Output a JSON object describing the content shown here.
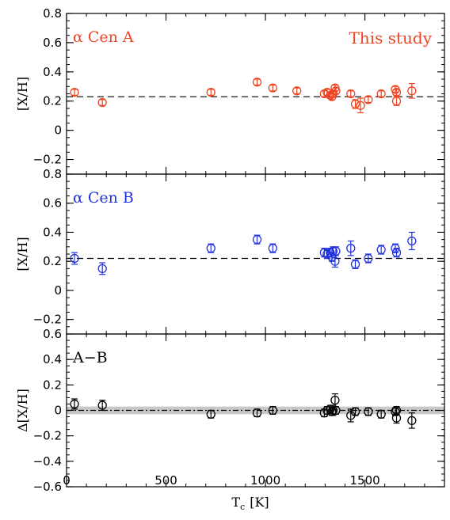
{
  "chart_data": {
    "type": "scatter",
    "xlabel": "T_c [K]",
    "xlabel_main": "T",
    "xlabel_sub": "c",
    "xlabel_unit": "[K]",
    "xlim": [
      0,
      1900
    ],
    "xticks": [
      "0",
      "500",
      "1000",
      "1500"
    ],
    "xtick_values": [
      0,
      500,
      1000,
      1500
    ],
    "panels": [
      {
        "id": "A",
        "label": "α Cen A",
        "note": "This study",
        "color": "#ee4422",
        "ylabel": "[X/H]",
        "ylim": [
          -0.3,
          0.8
        ],
        "yticks": [
          "−0.2",
          "0",
          "0.2",
          "0.4",
          "0.6",
          "0.8"
        ],
        "ytick_values": [
          -0.2,
          0,
          0.2,
          0.4,
          0.6,
          0.8
        ],
        "reference_line": 0.23,
        "points": [
          {
            "x": 40,
            "y": 0.26,
            "err": 0.02
          },
          {
            "x": 180,
            "y": 0.19,
            "err": 0.02
          },
          {
            "x": 726,
            "y": 0.26,
            "err": 0.02
          },
          {
            "x": 958,
            "y": 0.33,
            "err": 0.02
          },
          {
            "x": 1037,
            "y": 0.29,
            "err": 0.02
          },
          {
            "x": 1158,
            "y": 0.27,
            "err": 0.02
          },
          {
            "x": 1296,
            "y": 0.25,
            "err": 0.02
          },
          {
            "x": 1310,
            "y": 0.26,
            "err": 0.02
          },
          {
            "x": 1326,
            "y": 0.24,
            "err": 0.02
          },
          {
            "x": 1334,
            "y": 0.23,
            "err": 0.02
          },
          {
            "x": 1340,
            "y": 0.25,
            "err": 0.02
          },
          {
            "x": 1350,
            "y": 0.29,
            "err": 0.02
          },
          {
            "x": 1354,
            "y": 0.27,
            "err": 0.02
          },
          {
            "x": 1429,
            "y": 0.25,
            "err": 0.02
          },
          {
            "x": 1452,
            "y": 0.18,
            "err": 0.03
          },
          {
            "x": 1478,
            "y": 0.17,
            "err": 0.05
          },
          {
            "x": 1517,
            "y": 0.21,
            "err": 0.02
          },
          {
            "x": 1582,
            "y": 0.25,
            "err": 0.02
          },
          {
            "x": 1653,
            "y": 0.28,
            "err": 0.02
          },
          {
            "x": 1659,
            "y": 0.26,
            "err": 0.02
          },
          {
            "x": 1659,
            "y": 0.2,
            "err": 0.03
          },
          {
            "x": 1736,
            "y": 0.27,
            "err": 0.05
          }
        ]
      },
      {
        "id": "B",
        "label": "α Cen B",
        "note": "",
        "color": "#2233dd",
        "ylabel": "[X/H]",
        "ylim": [
          -0.3,
          0.8
        ],
        "yticks": [
          "−0.2",
          "0",
          "0.2",
          "0.4",
          "0.6",
          "0.8"
        ],
        "ytick_values": [
          -0.2,
          0,
          0.2,
          0.4,
          0.6,
          0.8
        ],
        "reference_line": 0.22,
        "points": [
          {
            "x": 40,
            "y": 0.22,
            "err": 0.04
          },
          {
            "x": 180,
            "y": 0.15,
            "err": 0.04
          },
          {
            "x": 726,
            "y": 0.29,
            "err": 0.03
          },
          {
            "x": 958,
            "y": 0.35,
            "err": 0.03
          },
          {
            "x": 1037,
            "y": 0.29,
            "err": 0.03
          },
          {
            "x": 1296,
            "y": 0.26,
            "err": 0.03
          },
          {
            "x": 1310,
            "y": 0.25,
            "err": 0.03
          },
          {
            "x": 1326,
            "y": 0.26,
            "err": 0.03
          },
          {
            "x": 1334,
            "y": 0.23,
            "err": 0.03
          },
          {
            "x": 1340,
            "y": 0.27,
            "err": 0.03
          },
          {
            "x": 1350,
            "y": 0.2,
            "err": 0.04
          },
          {
            "x": 1354,
            "y": 0.27,
            "err": 0.03
          },
          {
            "x": 1429,
            "y": 0.29,
            "err": 0.05
          },
          {
            "x": 1452,
            "y": 0.18,
            "err": 0.03
          },
          {
            "x": 1517,
            "y": 0.22,
            "err": 0.03
          },
          {
            "x": 1582,
            "y": 0.28,
            "err": 0.03
          },
          {
            "x": 1653,
            "y": 0.29,
            "err": 0.03
          },
          {
            "x": 1659,
            "y": 0.26,
            "err": 0.03
          },
          {
            "x": 1736,
            "y": 0.34,
            "err": 0.06
          }
        ]
      },
      {
        "id": "AB",
        "label": "A−B",
        "note": "",
        "color": "#000000",
        "ylabel": "Δ[X/H]",
        "ylim": [
          -0.6,
          0.6
        ],
        "yticks": [
          "−0.6",
          "−0.4",
          "−0.2",
          "0",
          "0.2",
          "0.4",
          "0.6"
        ],
        "ytick_values": [
          -0.6,
          -0.4,
          -0.2,
          0,
          0.2,
          0.4,
          0.6
        ],
        "reference_line": 0.0,
        "shaded_band": [
          -0.03,
          0.03
        ],
        "points": [
          {
            "x": 40,
            "y": 0.05,
            "err": 0.04
          },
          {
            "x": 180,
            "y": 0.04,
            "err": 0.04
          },
          {
            "x": 726,
            "y": -0.03,
            "err": 0.03
          },
          {
            "x": 958,
            "y": -0.02,
            "err": 0.03
          },
          {
            "x": 1037,
            "y": 0.0,
            "err": 0.03
          },
          {
            "x": 1296,
            "y": -0.02,
            "err": 0.03
          },
          {
            "x": 1310,
            "y": 0.0,
            "err": 0.03
          },
          {
            "x": 1326,
            "y": 0.01,
            "err": 0.03
          },
          {
            "x": 1334,
            "y": -0.01,
            "err": 0.03
          },
          {
            "x": 1340,
            "y": 0.0,
            "err": 0.04
          },
          {
            "x": 1350,
            "y": 0.08,
            "err": 0.05
          },
          {
            "x": 1354,
            "y": 0.0,
            "err": 0.03
          },
          {
            "x": 1429,
            "y": -0.04,
            "err": 0.05
          },
          {
            "x": 1452,
            "y": -0.01,
            "err": 0.03
          },
          {
            "x": 1517,
            "y": -0.01,
            "err": 0.03
          },
          {
            "x": 1582,
            "y": -0.03,
            "err": 0.03
          },
          {
            "x": 1653,
            "y": -0.01,
            "err": 0.03
          },
          {
            "x": 1659,
            "y": -0.06,
            "err": 0.04
          },
          {
            "x": 1659,
            "y": 0.0,
            "err": 0.03
          },
          {
            "x": 1736,
            "y": -0.08,
            "err": 0.06
          }
        ]
      }
    ]
  }
}
